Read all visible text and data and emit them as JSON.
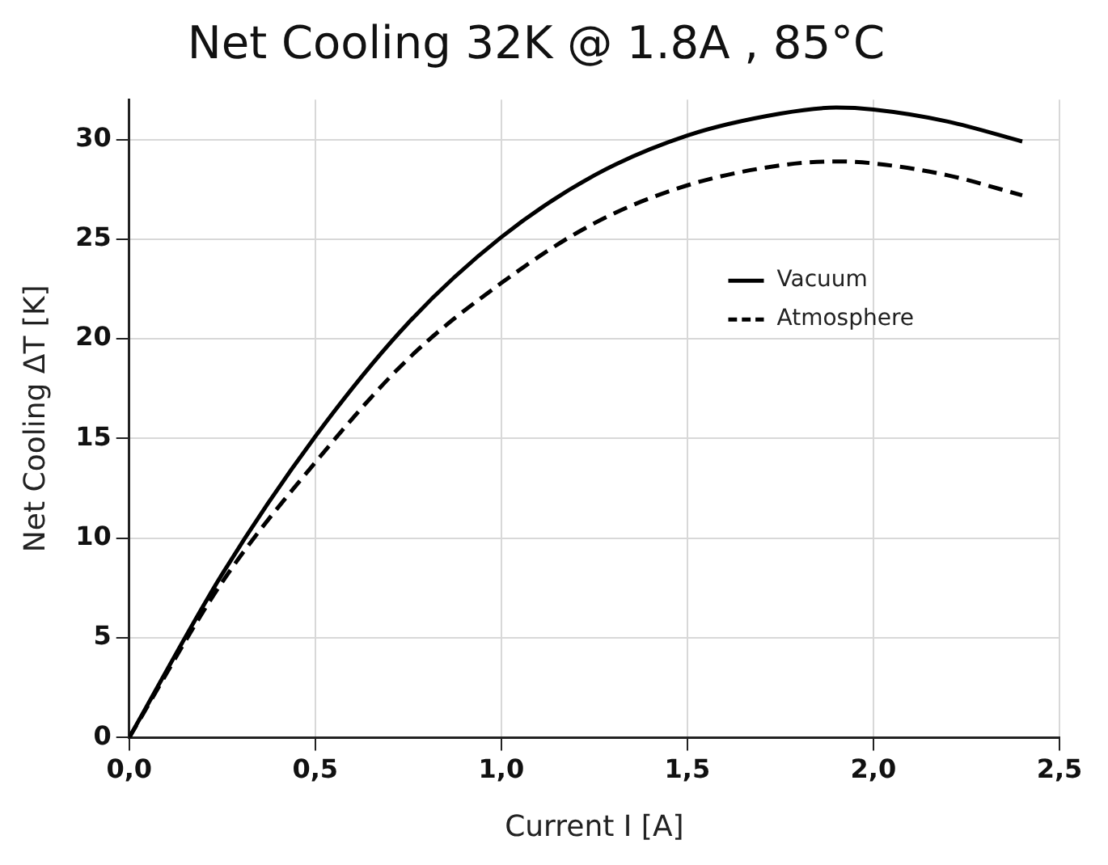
{
  "chart_data": {
    "type": "line",
    "title": "Net Cooling 32K @ 1.8A , 85°C",
    "xlabel": "Current I [A]",
    "ylabel": "Net Cooling ΔT [K]",
    "xlim": [
      0,
      2.5
    ],
    "xticks": [
      {
        "value": 0,
        "label": "0,0"
      },
      {
        "value": 0.5,
        "label": "0,5"
      },
      {
        "value": 1,
        "label": "1,0"
      },
      {
        "value": 1.5,
        "label": "1,5"
      },
      {
        "value": 2,
        "label": "2,0"
      },
      {
        "value": 2.5,
        "label": "2,5"
      }
    ],
    "ylim": [
      0,
      32
    ],
    "yticks": [
      0,
      5,
      10,
      15,
      20,
      25,
      30
    ],
    "grid": true,
    "legend": "top right",
    "marker": "none",
    "series": [
      {
        "name": "Vacuum",
        "color": "#000000",
        "line_style": "solid",
        "x": [
          0,
          0.25,
          0.5,
          0.75,
          1.0,
          1.25,
          1.5,
          1.75,
          1.9,
          2.0,
          2.2,
          2.4
        ],
        "values": [
          0,
          8.2,
          15.1,
          20.8,
          25.1,
          28.2,
          30.2,
          31.3,
          31.6,
          31.5,
          30.9,
          29.9
        ]
      },
      {
        "name": "Atmosphere",
        "color": "#000000",
        "line_style": "dashed",
        "x": [
          0,
          0.25,
          0.5,
          0.75,
          1.0,
          1.25,
          1.5,
          1.75,
          1.9,
          2.0,
          2.2,
          2.4
        ],
        "values": [
          0,
          7.8,
          13.8,
          19.0,
          22.8,
          25.8,
          27.7,
          28.7,
          28.9,
          28.8,
          28.2,
          27.2
        ]
      }
    ]
  }
}
